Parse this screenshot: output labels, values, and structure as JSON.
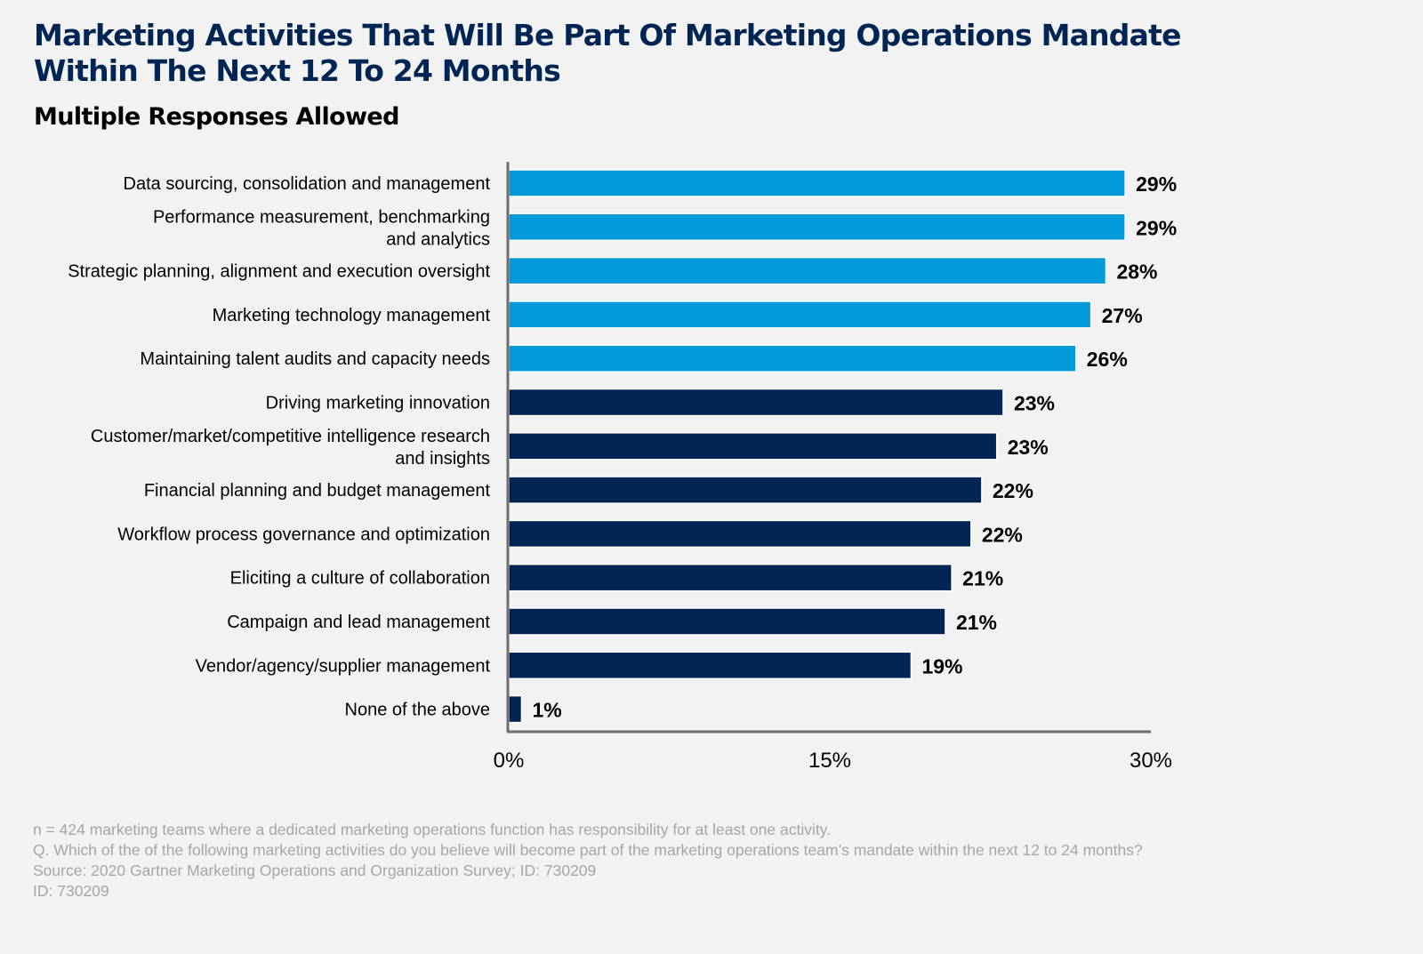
{
  "header": {
    "title": "Marketing Activities That Will Be Part Of Marketing Operations Mandate Within The Next 12 To 24 Months",
    "subtitle": "Multiple Responses Allowed"
  },
  "colors": {
    "highlight_bar": "#009bd8",
    "standard_bar": "#002554",
    "title": "#002554",
    "axis": "#6d6e71",
    "background": "#f2f2f2",
    "footnote": "#a6a6a6"
  },
  "chart_data": {
    "type": "bar",
    "orientation": "horizontal",
    "title": "Marketing Activities That Will Be Part Of Marketing Operations Mandate Within The Next 12 To 24 Months",
    "subtitle": "Multiple Responses Allowed",
    "xlabel": "",
    "ylabel": "",
    "xlim": [
      0,
      30
    ],
    "ticks": [
      0,
      15,
      30
    ],
    "tick_labels": [
      "0%",
      "15%",
      "30%"
    ],
    "grid": false,
    "categories": [
      [
        "Data sourcing, consolidation and management"
      ],
      [
        "Performance measurement, benchmarking",
        "and analytics"
      ],
      [
        "Strategic planning, alignment and execution oversight"
      ],
      [
        "Marketing technology management"
      ],
      [
        "Maintaining talent audits and capacity needs"
      ],
      [
        "Driving marketing innovation"
      ],
      [
        "Customer/market/competitive intelligence research",
        "and insights"
      ],
      [
        "Financial planning and budget management"
      ],
      [
        "Workflow process governance and optimization"
      ],
      [
        "Eliciting a culture of collaboration"
      ],
      [
        "Campaign and lead management"
      ],
      [
        "Vendor/agency/supplier management"
      ],
      [
        "None of the above"
      ]
    ],
    "values": [
      29,
      29,
      28,
      27,
      26,
      23,
      23,
      22,
      22,
      21,
      21,
      19,
      1
    ],
    "value_labels": [
      "29%",
      "29%",
      "28%",
      "27%",
      "26%",
      "23%",
      "23%",
      "22%",
      "22%",
      "21%",
      "21%",
      "19%",
      "1%"
    ],
    "highlighted": [
      true,
      true,
      true,
      true,
      true,
      false,
      false,
      false,
      false,
      false,
      false,
      false,
      false
    ],
    "exact_values_approx": [
      28.8,
      28.8,
      27.9,
      27.2,
      26.5,
      23.1,
      22.8,
      22.1,
      21.6,
      20.7,
      20.4,
      18.8,
      0.6
    ]
  },
  "footnotes": [
    "n = 424 marketing teams where a dedicated marketing operations function has responsibility for at least one activity.",
    "Q. Which of the of the following marketing activities do you believe will become part of the marketing operations team’s mandate within the next 12 to 24 months?",
    "Source: 2020 Gartner Marketing Operations and Organization Survey; ID: 730209",
    "ID: 730209"
  ]
}
